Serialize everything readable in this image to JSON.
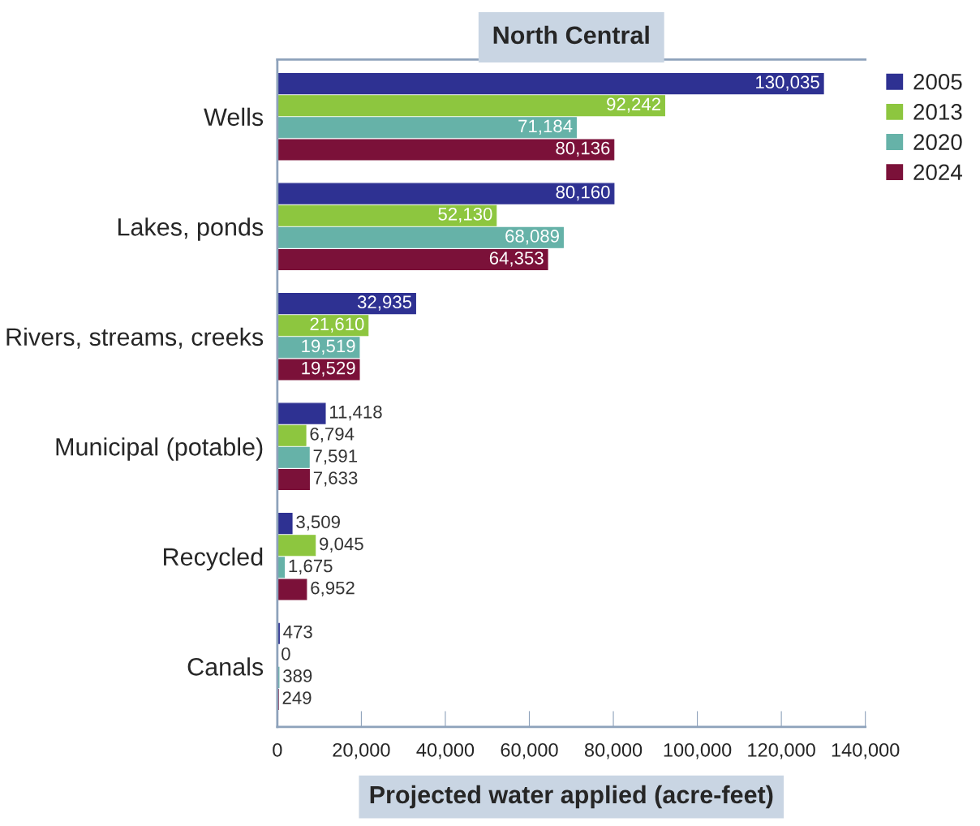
{
  "chart_data": {
    "type": "bar",
    "orientation": "horizontal",
    "title": "North Central",
    "xlabel": "Projected water applied (acre-feet)",
    "categories": [
      "Wells",
      "Lakes, ponds",
      "Rivers, streams, creeks",
      "Municipal (potable)",
      "Recycled",
      "Canals"
    ],
    "series": [
      {
        "name": "2005",
        "color": "#2e3192",
        "values": [
          130035,
          80160,
          32935,
          11418,
          3509,
          473
        ],
        "value_labels": [
          "130,035",
          "80,160",
          "32,935",
          "11,418",
          "3,509",
          "473"
        ]
      },
      {
        "name": "2013",
        "color": "#8dc63f",
        "values": [
          92242,
          52130,
          21610,
          6794,
          9045,
          0
        ],
        "value_labels": [
          "92,242",
          "52,130",
          "21,610",
          "6,794",
          "9,045",
          "0"
        ]
      },
      {
        "name": "2020",
        "color": "#66b2a8",
        "values": [
          71184,
          68089,
          19519,
          7591,
          1675,
          389
        ],
        "value_labels": [
          "71,184",
          "68,089",
          "19,519",
          "7,591",
          "1,675",
          "389"
        ]
      },
      {
        "name": "2024",
        "color": "#7b1139",
        "values": [
          80136,
          64353,
          19529,
          7633,
          6952,
          249
        ],
        "value_labels": [
          "80,136",
          "64,353",
          "19,529",
          "7,633",
          "6,952",
          "249"
        ]
      }
    ],
    "xlim": [
      0,
      140000
    ],
    "xticks": [
      0,
      {
        "value": 20000,
        "label": "20,000"
      },
      {
        "value": 40000,
        "label": "40,000"
      },
      {
        "value": 60000,
        "label": "60,000"
      },
      {
        "value": 80000,
        "label": "80,000"
      },
      {
        "value": 100000,
        "label": "100,000"
      },
      {
        "value": 120000,
        "label": "120,000"
      },
      {
        "value": 140000,
        "label": "140,000"
      }
    ],
    "legend": "top right",
    "grid": false
  }
}
